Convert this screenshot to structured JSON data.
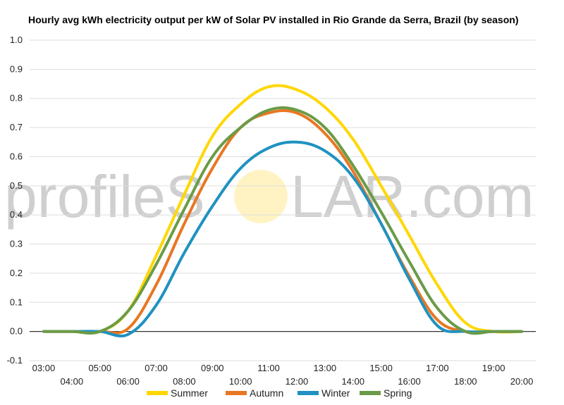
{
  "chart_data": {
    "type": "line",
    "title": "Hourly avg kWh electricity output per kW of Solar PV installed in Rio Grande da Serra, Brazil (by season)",
    "xlabel": "",
    "ylabel": "",
    "ylim": [
      -0.1,
      1.0
    ],
    "yticks": [
      "-0.1",
      "0.0",
      "0.1",
      "0.2",
      "0.3",
      "0.4",
      "0.5",
      "0.6",
      "0.7",
      "0.8",
      "0.9",
      "1.0"
    ],
    "categories": [
      "03:00",
      "04:00",
      "05:00",
      "06:00",
      "07:00",
      "08:00",
      "09:00",
      "10:00",
      "11:00",
      "12:00",
      "13:00",
      "14:00",
      "15:00",
      "16:00",
      "17:00",
      "18:00",
      "19:00",
      "20:00"
    ],
    "grid": true,
    "legend_position": "bottom",
    "series": [
      {
        "name": "Summer",
        "color": "#FFD700",
        "values": [
          0.0,
          0.0,
          0.0,
          0.07,
          0.26,
          0.47,
          0.67,
          0.78,
          0.84,
          0.83,
          0.77,
          0.66,
          0.5,
          0.33,
          0.16,
          0.03,
          0.0,
          0.0
        ]
      },
      {
        "name": "Autumn",
        "color": "#E87722",
        "values": [
          0.0,
          0.0,
          0.0,
          0.01,
          0.16,
          0.37,
          0.56,
          0.7,
          0.75,
          0.75,
          0.68,
          0.55,
          0.37,
          0.19,
          0.04,
          0.0,
          0.0,
          0.0
        ]
      },
      {
        "name": "Winter",
        "color": "#1F92C1",
        "values": [
          0.0,
          0.0,
          0.0,
          -0.01,
          0.09,
          0.27,
          0.43,
          0.56,
          0.63,
          0.65,
          0.62,
          0.53,
          0.37,
          0.18,
          0.02,
          0.0,
          0.0,
          0.0
        ]
      },
      {
        "name": "Spring",
        "color": "#6B9B47",
        "values": [
          0.0,
          0.0,
          0.0,
          0.07,
          0.23,
          0.42,
          0.6,
          0.7,
          0.76,
          0.76,
          0.7,
          0.57,
          0.41,
          0.24,
          0.08,
          0.0,
          0.0,
          0.0
        ]
      }
    ]
  },
  "watermark": {
    "prefix": "profileS",
    "suffix": "LAR.com",
    "sun_color": "#FFF3C4",
    "text_color": "#cfcfcf"
  }
}
